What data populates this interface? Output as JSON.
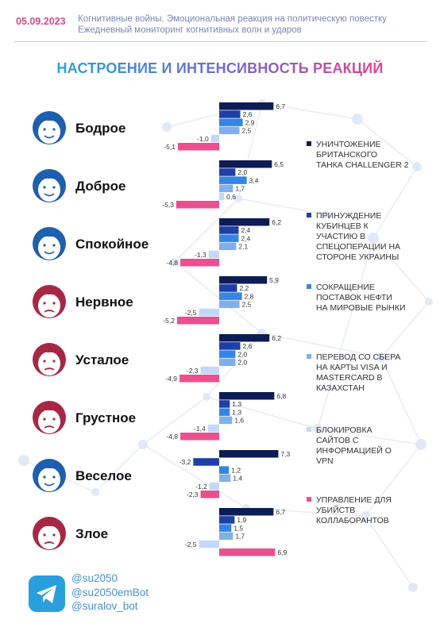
{
  "header": {
    "date": "05.09.2023",
    "line1": "Когнитивные войны. Эмоциональная реакция на политическую повестку",
    "line2": "Ежедневный мониторинг когнитивных волн и ударов"
  },
  "title": "НАСТРОЕНИЕ И ИНТЕНСИВНОСТЬ РЕАКЦИЙ",
  "colors": {
    "s1": "#0d1c54",
    "s2": "#1f3fa6",
    "s3": "#3684e6",
    "s4": "#7fb0ec",
    "s5": "#c4d9f7",
    "s6": "#ea4f8f",
    "accent": "#d94c86",
    "network": "#e4ebf7",
    "face_blue": "#1e5fae",
    "face_red": "#a72845"
  },
  "chart_data": {
    "type": "bar",
    "orientation": "horizontal",
    "title": "НАСТРОЕНИЕ И ИНТЕНСИВНОСТЬ РЕАКЦИЙ",
    "xlim": [
      -6,
      7.5
    ],
    "legend_position": "right",
    "categories": [
      "Бодрое",
      "Доброе",
      "Спокойное",
      "Нервное",
      "Усталое",
      "Грустное",
      "Веселое",
      "Злое"
    ],
    "category_icons": [
      "face-cheerful-icon",
      "face-kind-icon",
      "face-calm-icon",
      "face-nervous-icon",
      "face-tired-icon",
      "face-sad-icon",
      "face-happy-icon",
      "face-angry-icon"
    ],
    "series": [
      {
        "name": "УНИЧТОЖЕНИЕ БРИТАНСКОГО ТАНКА CHALLENGER 2",
        "values": [
          6.7,
          6.5,
          6.2,
          5.9,
          6.2,
          6.8,
          7.3,
          6.7
        ],
        "labels": [
          "6,7",
          "6,5",
          "6,2",
          "5,9",
          "6,2",
          "6,8",
          "7,3",
          "6,7"
        ]
      },
      {
        "name": "ПРИНУЖДЕНИЕ КУБИНЦЕВ К УЧАСТИЮ В СПЕЦОПЕРАЦИИ НА СТОРОНЕ УКРАИНЫ",
        "values": [
          2.6,
          2.0,
          2.4,
          2.2,
          2.6,
          1.3,
          -3.2,
          1.9
        ],
        "labels": [
          "2,6",
          "2,0",
          "2,4",
          "2,2",
          "2,6",
          "1,3",
          "-3,2",
          "1,9"
        ]
      },
      {
        "name": "СОКРАЩЕНИЕ ПОСТАВОК НЕФТИ НА МИРОВЫЕ РЫНКИ",
        "values": [
          2.9,
          3.4,
          2.4,
          2.8,
          2.0,
          1.3,
          1.2,
          1.5
        ],
        "labels": [
          "2,9",
          "3,4",
          "2,4",
          "2,8",
          "2,0",
          "1,3",
          "1,2",
          "1,5"
        ]
      },
      {
        "name": "ПЕРЕВОД СО СБЕРА НА КАРТЫ VISA И MASTERCARD В КАЗАХСТАН",
        "values": [
          2.5,
          1.7,
          2.1,
          2.5,
          2.0,
          1.6,
          1.4,
          1.7
        ],
        "labels": [
          "2,5",
          "1,7",
          "2,1",
          "2,5",
          "2,0",
          "1,6",
          "1,4",
          "1,7"
        ]
      },
      {
        "name": "БЛОКИРОВКА САЙТОВ С ИНФОРМАЦИЕЙ О VPN",
        "values": [
          -1.0,
          0.6,
          -1.3,
          -2.5,
          -2.3,
          -1.4,
          -1.2,
          -2.5
        ],
        "labels": [
          "-1,0",
          "0,6",
          "-1,3",
          "-2,5",
          "-2,3",
          "-1,4",
          "-1,2",
          "-2,5"
        ]
      },
      {
        "name": "УПРАВЛЕНИЕ ДЛЯ УБИЙСТВ КОЛЛАБОРАНТОВ",
        "values": [
          -5.1,
          -5.3,
          -4.8,
          -5.2,
          -4.9,
          -4.8,
          -2.3,
          6.9
        ],
        "labels": [
          "-5,1",
          "-5,3",
          "-4,8",
          "-5,2",
          "-4,9",
          "-4,8",
          "-2,3",
          "6,9"
        ]
      }
    ],
    "legend": [
      [
        "УНИЧТОЖЕНИЕ",
        "БРИТАНСКОГО",
        "ТАНКА CHALLENGER 2"
      ],
      [
        "ПРИНУЖДЕНИЕ",
        "КУБИНЦЕВ К",
        "УЧАСТИЮ В",
        "СПЕЦОПЕРАЦИИ НА",
        "СТОРОНЕ УКРАИНЫ"
      ],
      [
        "СОКРАЩЕНИЕ",
        "ПОСТАВОК НЕФТИ",
        "НА МИРОВЫЕ РЫНКИ"
      ],
      [
        "ПЕРЕВОД СО СБЕРА",
        "НА КАРТЫ VISA И",
        "MASTERCARD В",
        "КАЗАХСТАН"
      ],
      [
        "БЛОКИРОВКА",
        "САЙТОВ С",
        "ИНФОРМАЦИЕЙ О",
        "VPN"
      ],
      [
        "УПРАВЛЕНИЕ ДЛЯ",
        "УБИЙСТВ",
        "КОЛЛАБОРАНТОВ"
      ]
    ]
  },
  "footer": {
    "icon": "telegram-icon",
    "handles": [
      "@su2050",
      "@su2050emBot",
      "@suralov_bot"
    ]
  }
}
